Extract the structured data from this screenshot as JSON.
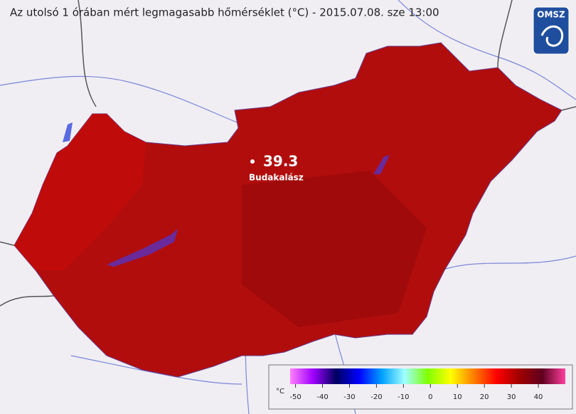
{
  "title": "Az utolsó 1 órában mért legmagasabb hőmérséklet (°C) - 2015.07.08. sze 13:00",
  "logo": "OMSZ",
  "station": {
    "value": 39.3,
    "name": "Budakalász"
  },
  "legend": {
    "unit": "°C",
    "range": [
      -52,
      50
    ],
    "ticks": [
      -50,
      -40,
      -30,
      -20,
      -10,
      0,
      10,
      20,
      30,
      40
    ],
    "colors": [
      "#ff80ff",
      "#a000ff",
      "#000060",
      "#0000ff",
      "#00a0ff",
      "#a0ffff",
      "#80ff00",
      "#ffff00",
      "#ff8000",
      "#ff0000",
      "#a00000",
      "#600020",
      "#ff40a0"
    ]
  }
}
